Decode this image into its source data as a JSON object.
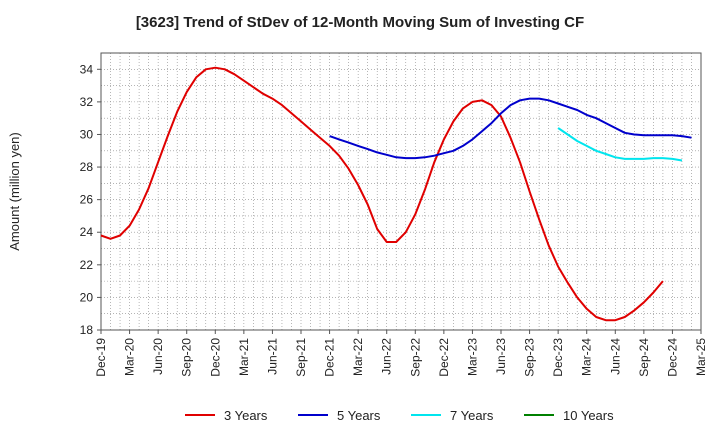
{
  "chart_data": {
    "type": "line",
    "title": "[3623]  Trend of StDev of 12-Month Moving Sum of Investing CF",
    "ylabel": "Amount (million yen)",
    "xlabel": "",
    "ylim": [
      18,
      35
    ],
    "yticks": [
      18,
      20,
      22,
      24,
      26,
      28,
      30,
      32,
      34
    ],
    "x_start": "2019-12",
    "x_end": "2025-03",
    "xticks": [
      "Dec-19",
      "Mar-20",
      "Jun-20",
      "Sep-20",
      "Dec-20",
      "Mar-21",
      "Jun-21",
      "Sep-21",
      "Dec-21",
      "Mar-22",
      "Jun-22",
      "Sep-22",
      "Dec-22",
      "Mar-23",
      "Jun-23",
      "Sep-23",
      "Dec-23",
      "Mar-24",
      "Jun-24",
      "Sep-24",
      "Dec-24",
      "Mar-25"
    ],
    "grid": true,
    "legend_position": "bottom",
    "series": [
      {
        "name": "3 Years",
        "color": "#e00000",
        "start_index": 0,
        "values": [
          23.8,
          23.6,
          23.8,
          24.4,
          25.4,
          26.7,
          28.3,
          29.9,
          31.4,
          32.6,
          33.5,
          34.0,
          34.1,
          34.0,
          33.7,
          33.3,
          32.9,
          32.5,
          32.2,
          31.8,
          31.3,
          30.8,
          30.3,
          29.8,
          29.3,
          28.7,
          27.9,
          26.9,
          25.7,
          24.2,
          23.4,
          23.4,
          24.0,
          25.1,
          26.6,
          28.3,
          29.7,
          30.8,
          31.6,
          32.0,
          32.1,
          31.8,
          31.1,
          29.8,
          28.3,
          26.5,
          24.8,
          23.2,
          21.9,
          20.9,
          20.0,
          19.3,
          18.8,
          18.6,
          18.6,
          18.8,
          19.2,
          19.7,
          20.3,
          21.0
        ]
      },
      {
        "name": "5 Years",
        "color": "#0000cc",
        "start_index": 24,
        "values": [
          29.9,
          29.7,
          29.5,
          29.3,
          29.1,
          28.9,
          28.75,
          28.6,
          28.55,
          28.55,
          28.6,
          28.7,
          28.85,
          29.0,
          29.3,
          29.7,
          30.2,
          30.7,
          31.3,
          31.8,
          32.1,
          32.2,
          32.2,
          32.1,
          31.9,
          31.7,
          31.5,
          31.2,
          31.0,
          30.7,
          30.4,
          30.1,
          30.0,
          29.95,
          29.95,
          29.95,
          29.95,
          29.9,
          29.8
        ]
      },
      {
        "name": "7 Years",
        "color": "#00e5ee",
        "start_index": 48,
        "values": [
          30.4,
          30.0,
          29.6,
          29.3,
          29.0,
          28.8,
          28.6,
          28.5,
          28.5,
          28.5,
          28.55,
          28.55,
          28.5,
          28.4
        ]
      },
      {
        "name": "10 Years",
        "color": "#008000",
        "start_index": 0,
        "values": []
      }
    ]
  }
}
